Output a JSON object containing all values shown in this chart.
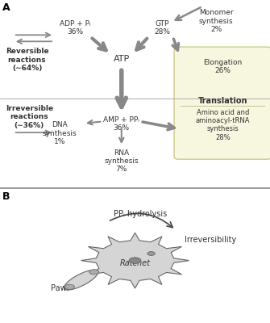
{
  "panel_a_label": "A",
  "panel_b_label": "B",
  "arrow_color": "#888888",
  "text_color": "#333333",
  "background": "#ffffff",
  "box_fill": "#f7f7e0",
  "box_edge": "#cccc88",
  "reversible_label": "Reversible\nreactions\n(∼64%)",
  "irreversible_label": "Irreversible\nreactions\n(∼36%)",
  "atp_label": "ATP",
  "adp_label": "ADP + Pᵢ\n36%",
  "gtp_label": "GTP\n28%",
  "amp_label": "AMP + PPᵢ\n36%",
  "monomer_label": "Monomer\nsynthesis\n2%",
  "elongation_label": "Elongation\n26%",
  "translation_label": "Translation",
  "dna_label": "DNA\nsynthesis\n1%",
  "rna_label": "RNA\nsynthesis\n7%",
  "aa_label": "Amino acid and\naminoacyl-tRNA\nsynthesis\n28%",
  "ppi_label": "PPᵢ hydrolysis",
  "pawl_label": "Pawl",
  "irreversibility_label": "Irreversibility",
  "ratchet_label": "Ratchet"
}
